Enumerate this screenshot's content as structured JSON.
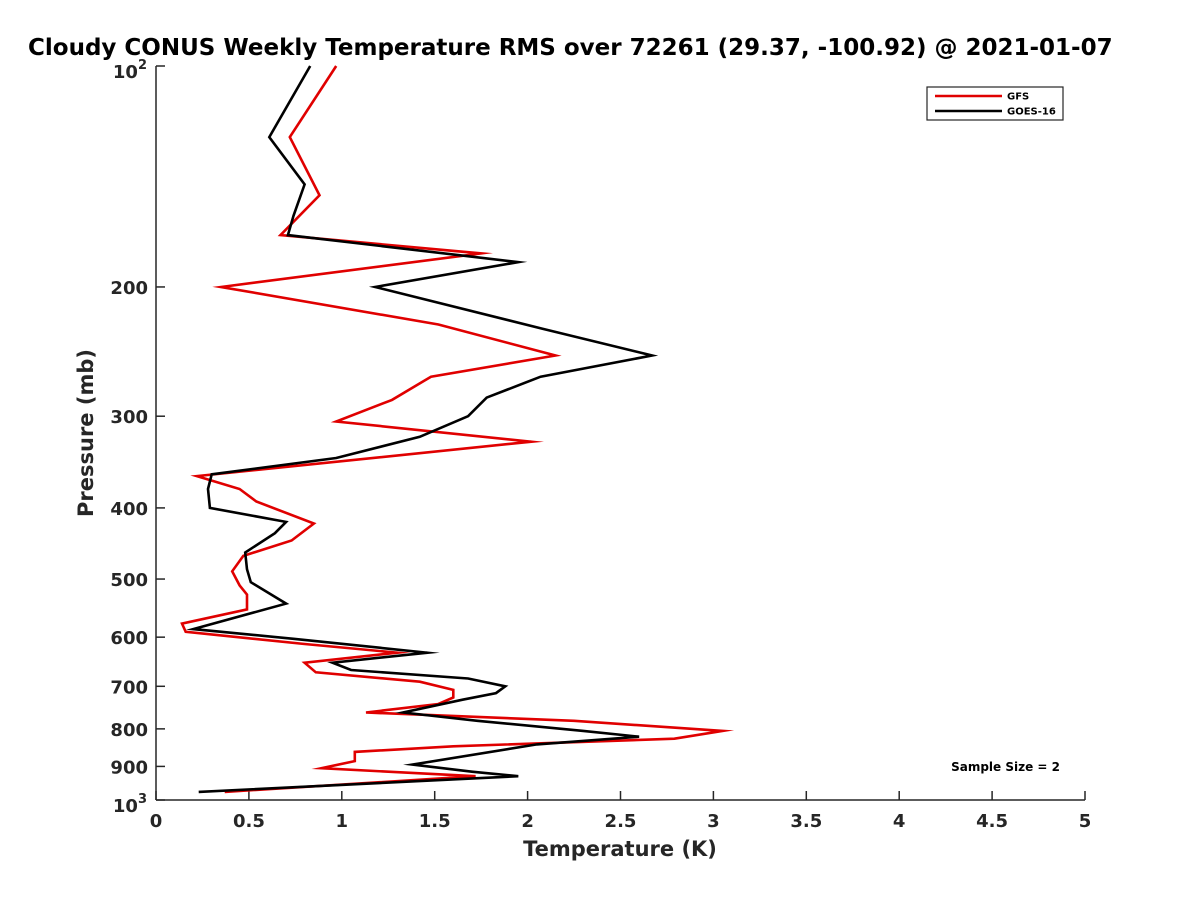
{
  "chart_data": {
    "type": "line",
    "title": "Cloudy CONUS Weekly Temperature RMS over 72261 (29.37, -100.92) @ 2021-01-07",
    "xlabel": "Temperature (K)",
    "ylabel": "Pressure (mb)",
    "xlim": [
      0,
      5
    ],
    "ylim": [
      100,
      1000
    ],
    "y_scale": "log",
    "y_reversed": true,
    "grid": false,
    "legend_position": "top-right",
    "x_ticks": [
      "0",
      "0.5",
      "1",
      "1.5",
      "2",
      "2.5",
      "3",
      "3.5",
      "4",
      "4.5",
      "5"
    ],
    "y_ticks": [
      {
        "value": 100,
        "label": "10",
        "sup": "2"
      },
      {
        "value": 200,
        "label": "200"
      },
      {
        "value": 300,
        "label": "300"
      },
      {
        "value": 400,
        "label": "400"
      },
      {
        "value": 500,
        "label": "500"
      },
      {
        "value": 600,
        "label": "600"
      },
      {
        "value": 700,
        "label": "700"
      },
      {
        "value": 800,
        "label": "800"
      },
      {
        "value": 900,
        "label": "900"
      },
      {
        "value": 1000,
        "label": "10",
        "sup": "3"
      }
    ],
    "annotation": "Sample Size = 2",
    "series": [
      {
        "name": "GFS",
        "color": "#e00000",
        "points": [
          [
            0.97,
            100
          ],
          [
            0.72,
            125
          ],
          [
            0.88,
            150
          ],
          [
            0.67,
            170
          ],
          [
            1.75,
            180
          ],
          [
            0.35,
            200
          ],
          [
            1.52,
            225
          ],
          [
            2.15,
            248
          ],
          [
            1.48,
            265
          ],
          [
            1.27,
            285
          ],
          [
            0.97,
            305
          ],
          [
            2.02,
            325
          ],
          [
            0.22,
            362
          ],
          [
            0.45,
            377
          ],
          [
            0.54,
            392
          ],
          [
            0.85,
            420
          ],
          [
            0.73,
            443
          ],
          [
            0.47,
            465
          ],
          [
            0.41,
            488
          ],
          [
            0.45,
            510
          ],
          [
            0.49,
            525
          ],
          [
            0.49,
            550
          ],
          [
            0.14,
            575
          ],
          [
            0.16,
            590
          ],
          [
            0.8,
            613
          ],
          [
            1.3,
            630
          ],
          [
            0.8,
            650
          ],
          [
            0.86,
            670
          ],
          [
            1.42,
            690
          ],
          [
            1.6,
            708
          ],
          [
            1.6,
            725
          ],
          [
            1.52,
            740
          ],
          [
            1.13,
            760
          ],
          [
            2.25,
            780
          ],
          [
            3.05,
            805
          ],
          [
            2.79,
            825
          ],
          [
            1.6,
            845
          ],
          [
            1.07,
            860
          ],
          [
            1.07,
            885
          ],
          [
            0.89,
            905
          ],
          [
            1.25,
            915
          ],
          [
            1.72,
            928
          ],
          [
            0.37,
            975
          ]
        ]
      },
      {
        "name": "GOES-16",
        "color": "#000000",
        "points": [
          [
            0.83,
            100
          ],
          [
            0.61,
            125
          ],
          [
            0.8,
            145
          ],
          [
            0.74,
            160
          ],
          [
            0.71,
            170
          ],
          [
            1.95,
            185
          ],
          [
            1.18,
            200
          ],
          [
            2.08,
            228
          ],
          [
            2.67,
            248
          ],
          [
            2.07,
            265
          ],
          [
            1.78,
            283
          ],
          [
            1.68,
            300
          ],
          [
            1.42,
            320
          ],
          [
            0.97,
            342
          ],
          [
            0.3,
            360
          ],
          [
            0.28,
            377
          ],
          [
            0.29,
            400
          ],
          [
            0.7,
            418
          ],
          [
            0.64,
            433
          ],
          [
            0.48,
            460
          ],
          [
            0.49,
            485
          ],
          [
            0.51,
            505
          ],
          [
            0.7,
            540
          ],
          [
            0.2,
            585
          ],
          [
            0.74,
            603
          ],
          [
            1.46,
            630
          ],
          [
            0.95,
            650
          ],
          [
            1.05,
            665
          ],
          [
            1.68,
            683
          ],
          [
            1.88,
            700
          ],
          [
            1.83,
            715
          ],
          [
            1.65,
            730
          ],
          [
            1.33,
            760
          ],
          [
            1.73,
            780
          ],
          [
            2.3,
            805
          ],
          [
            2.6,
            820
          ],
          [
            2.05,
            840
          ],
          [
            1.38,
            895
          ],
          [
            1.7,
            915
          ],
          [
            1.95,
            928
          ],
          [
            0.23,
            975
          ]
        ]
      }
    ]
  }
}
